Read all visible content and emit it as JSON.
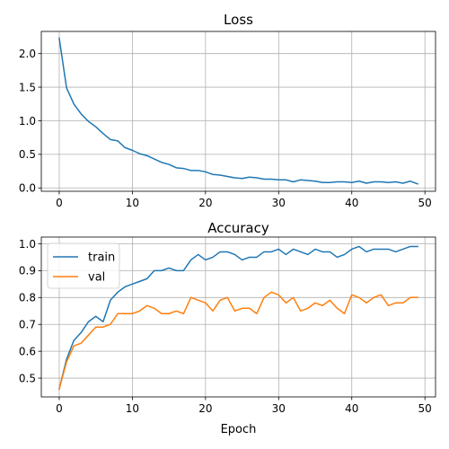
{
  "colors": {
    "train": "#1f77b4",
    "val": "#ff7f0e",
    "grid": "#b0b0b0",
    "axis": "#000000"
  },
  "chart_data": [
    {
      "type": "line",
      "title": "Loss",
      "xlabel": "",
      "ylabel": "",
      "xlim": [
        -2.45,
        51.45
      ],
      "ylim": [
        -0.05,
        2.33
      ],
      "xticks": [
        0,
        10,
        20,
        30,
        40,
        50
      ],
      "yticks": [
        0.0,
        0.5,
        1.0,
        1.5,
        2.0
      ],
      "ytick_labels": [
        "0.0",
        "0.5",
        "1.0",
        "1.5",
        "2.0"
      ],
      "grid": true,
      "legend": null,
      "x": [
        0,
        1,
        2,
        3,
        4,
        5,
        6,
        7,
        8,
        9,
        10,
        11,
        12,
        13,
        14,
        15,
        16,
        17,
        18,
        19,
        20,
        21,
        22,
        23,
        24,
        25,
        26,
        27,
        28,
        29,
        30,
        31,
        32,
        33,
        34,
        35,
        36,
        37,
        38,
        39,
        40,
        41,
        42,
        43,
        44,
        45,
        46,
        47,
        48,
        49
      ],
      "series": [
        {
          "color_key": "train",
          "values": [
            2.23,
            1.49,
            1.25,
            1.1,
            0.99,
            0.91,
            0.81,
            0.72,
            0.7,
            0.6,
            0.56,
            0.51,
            0.48,
            0.43,
            0.38,
            0.35,
            0.3,
            0.29,
            0.26,
            0.26,
            0.24,
            0.2,
            0.19,
            0.17,
            0.15,
            0.14,
            0.16,
            0.15,
            0.13,
            0.13,
            0.12,
            0.12,
            0.09,
            0.12,
            0.11,
            0.1,
            0.08,
            0.08,
            0.09,
            0.09,
            0.08,
            0.1,
            0.07,
            0.09,
            0.09,
            0.08,
            0.09,
            0.07,
            0.1,
            0.06
          ]
        }
      ]
    },
    {
      "type": "line",
      "title": "Accuracy",
      "xlabel": "Epoch",
      "ylabel": "",
      "xlim": [
        -2.45,
        51.45
      ],
      "ylim": [
        0.43,
        1.025
      ],
      "xticks": [
        0,
        10,
        20,
        30,
        40,
        50
      ],
      "yticks": [
        0.5,
        0.6,
        0.7,
        0.8,
        0.9,
        1.0
      ],
      "ytick_labels": [
        "0.5",
        "0.6",
        "0.7",
        "0.8",
        "0.9",
        "1.0"
      ],
      "grid": true,
      "legend": "upper-left",
      "x": [
        0,
        1,
        2,
        3,
        4,
        5,
        6,
        7,
        8,
        9,
        10,
        11,
        12,
        13,
        14,
        15,
        16,
        17,
        18,
        19,
        20,
        21,
        22,
        23,
        24,
        25,
        26,
        27,
        28,
        29,
        30,
        31,
        32,
        33,
        34,
        35,
        36,
        37,
        38,
        39,
        40,
        41,
        42,
        43,
        44,
        45,
        46,
        47,
        48,
        49
      ],
      "series": [
        {
          "name": "train",
          "color_key": "train",
          "values": [
            0.46,
            0.57,
            0.64,
            0.67,
            0.71,
            0.73,
            0.71,
            0.79,
            0.82,
            0.84,
            0.85,
            0.86,
            0.87,
            0.9,
            0.9,
            0.91,
            0.9,
            0.9,
            0.94,
            0.96,
            0.94,
            0.95,
            0.97,
            0.97,
            0.96,
            0.94,
            0.95,
            0.95,
            0.97,
            0.97,
            0.98,
            0.96,
            0.98,
            0.97,
            0.96,
            0.98,
            0.97,
            0.97,
            0.95,
            0.96,
            0.98,
            0.99,
            0.97,
            0.98,
            0.98,
            0.98,
            0.97,
            0.98,
            0.99,
            0.99
          ]
        },
        {
          "name": "val",
          "color_key": "val",
          "values": [
            0.46,
            0.56,
            0.62,
            0.63,
            0.66,
            0.69,
            0.69,
            0.7,
            0.74,
            0.74,
            0.74,
            0.75,
            0.77,
            0.76,
            0.74,
            0.74,
            0.75,
            0.74,
            0.8,
            0.79,
            0.78,
            0.75,
            0.79,
            0.8,
            0.75,
            0.76,
            0.76,
            0.74,
            0.8,
            0.82,
            0.81,
            0.78,
            0.8,
            0.75,
            0.76,
            0.78,
            0.77,
            0.79,
            0.76,
            0.74,
            0.81,
            0.8,
            0.78,
            0.8,
            0.81,
            0.77,
            0.78,
            0.78,
            0.8,
            0.8
          ]
        }
      ]
    }
  ]
}
